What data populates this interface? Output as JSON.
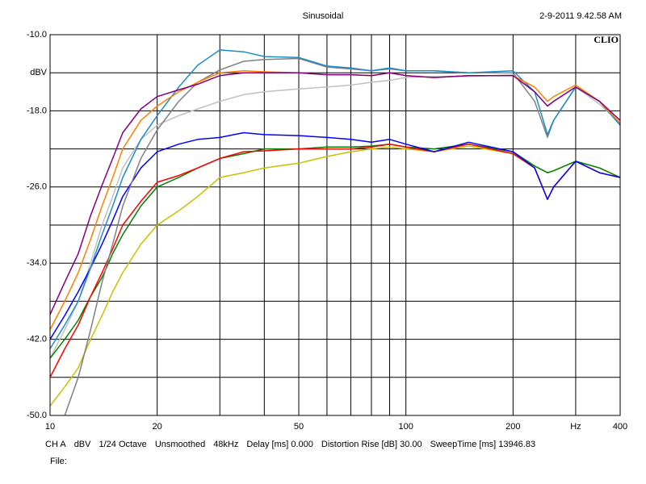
{
  "chart_data": {
    "type": "line",
    "title": "Sinusoidal",
    "timestamp": "2-9-2011 9.42.58 AM",
    "brand": "CLIO",
    "footer": [
      "CH A",
      "dBV",
      "1/24 Octave",
      "Unsmoothed",
      "48kHz",
      "Delay [ms] 0.000",
      "Distortion Rise [dB] 30.00",
      "SweepTime [ms] 13946.83"
    ],
    "file_label": "File:",
    "x_log": true,
    "grid": true,
    "xlim": [
      10,
      400
    ],
    "xticks": [
      {
        "value": 10,
        "label": "10"
      },
      20,
      50,
      100,
      200,
      {
        "value": 300,
        "label": "Hz"
      },
      400
    ],
    "minor_xticks": [
      30,
      40,
      60,
      70,
      80,
      90
    ],
    "ylim": [
      -50,
      -10
    ],
    "yticks": [
      {
        "value": -10,
        "label": "-10.0"
      },
      {
        "value": -14,
        "label": "dBV"
      },
      {
        "value": -18,
        "label": "-18.0"
      },
      {
        "value": -26,
        "label": "-26.0"
      },
      {
        "value": -34,
        "label": "-34.0"
      },
      {
        "value": -42,
        "label": "-42.0"
      },
      {
        "value": -50,
        "label": "-50.0"
      }
    ],
    "minor_yticks": [
      -22,
      -30,
      -38,
      -46
    ],
    "x": [
      10,
      11,
      12,
      13,
      14,
      15,
      16,
      18,
      20,
      23,
      26,
      30,
      35,
      40,
      50,
      60,
      70,
      80,
      90,
      100,
      120,
      150,
      200,
      230,
      250,
      260,
      300,
      350,
      400
    ],
    "series": [
      {
        "color": "#c0c0c0",
        "values": [
          -44,
          -41,
          -38,
          -34,
          -30,
          -27,
          -24,
          -21,
          -19.5,
          -18.5,
          -17.8,
          -17,
          -16.3,
          -16,
          -15.7,
          -15.5,
          -15.3,
          -15,
          -14.8,
          -14.5,
          -14.4,
          -14.4,
          -14.2,
          -16,
          -17.5,
          -17,
          -15.5,
          -17.3,
          -19.3
        ]
      },
      {
        "color": "#c8c000",
        "values": [
          -49,
          -47,
          -45,
          -42,
          -39.5,
          -37,
          -35,
          -32,
          -30,
          -28.5,
          -27,
          -25,
          -24.5,
          -24,
          -23.5,
          -22.8,
          -22.3,
          -22,
          -21.8,
          -22,
          -22.3,
          -21.7,
          -22.5,
          -23.8,
          -24.5,
          -24.3,
          -23.3,
          -24,
          -25
        ]
      },
      {
        "color": "#008000",
        "values": [
          -44,
          -42,
          -40,
          -37.5,
          -35.5,
          -33,
          -31,
          -28,
          -26,
          -25,
          -24,
          -23,
          -22.5,
          -22,
          -22,
          -21.8,
          -21.8,
          -21.7,
          -21.5,
          -21.8,
          -22,
          -21.5,
          -22.3,
          -23.8,
          -24.5,
          -24.3,
          -23.3,
          -24,
          -25
        ]
      },
      {
        "color": "#ff0000",
        "values": [
          -46,
          -43,
          -40.5,
          -37.5,
          -35,
          -32.5,
          -30,
          -27.5,
          -25.5,
          -24.8,
          -24,
          -23,
          -22.3,
          -22.2,
          -22,
          -22,
          -22,
          -21.8,
          -21.5,
          -21.8,
          -22.3,
          -21.5,
          -22.5,
          -24,
          -27.3,
          -26,
          -23.3,
          -24.5,
          -25
        ]
      },
      {
        "color": "#0000ff",
        "values": [
          -42,
          -39.5,
          -37,
          -34.5,
          -32,
          -29.5,
          -27,
          -24,
          -22.3,
          -21.5,
          -21,
          -20.8,
          -20.3,
          -20.5,
          -20.6,
          -20.8,
          -21,
          -21.3,
          -21,
          -21.5,
          -22.3,
          -21.3,
          -22.3,
          -24,
          -27.3,
          -26,
          -23.3,
          -24.5,
          -25
        ]
      },
      {
        "color": "#808080",
        "values": [
          null,
          -50,
          -46,
          -41,
          -36,
          -32,
          -28,
          -23,
          -20,
          -17,
          -15,
          -13.7,
          -12.8,
          -12.6,
          -12.5,
          -13.4,
          -13.6,
          -13.8,
          -13.6,
          -13.8,
          -13.8,
          -14,
          -14,
          -17,
          -20.8,
          -19,
          -15.5,
          -17,
          -19.5
        ]
      },
      {
        "color": "#1e8cc8",
        "values": [
          -43,
          -40.5,
          -38,
          -34.5,
          -31,
          -28,
          -25,
          -21,
          -18.5,
          -15.5,
          -13.2,
          -11.6,
          -11.8,
          -12.3,
          -12.4,
          -13.3,
          -13.5,
          -13.8,
          -13.5,
          -13.8,
          -13.8,
          -14,
          -13.8,
          -16,
          -20.5,
          -19,
          -15.5,
          -17,
          -19.5
        ]
      },
      {
        "color": "#ff8000",
        "values": [
          -41,
          -38,
          -35,
          -31.5,
          -28,
          -25,
          -22,
          -19,
          -17.5,
          -16,
          -15,
          -14,
          -13.8,
          -13.9,
          -14,
          -14.2,
          -14.2,
          -14.3,
          -14,
          -14.3,
          -14.5,
          -14.3,
          -14.3,
          -15.5,
          -17,
          -16.5,
          -15.3,
          -17,
          -19.3
        ]
      },
      {
        "color": "#800080",
        "values": [
          -39.4,
          -36,
          -33,
          -29,
          -25.8,
          -23,
          -20.3,
          -17.8,
          -16.5,
          -15.8,
          -15.2,
          -14.3,
          -14,
          -14,
          -14,
          -14.2,
          -14.2,
          -14.3,
          -14,
          -14.3,
          -14.5,
          -14.3,
          -14.3,
          -16,
          -17.5,
          -17,
          -15.5,
          -17,
          -19
        ]
      }
    ]
  }
}
